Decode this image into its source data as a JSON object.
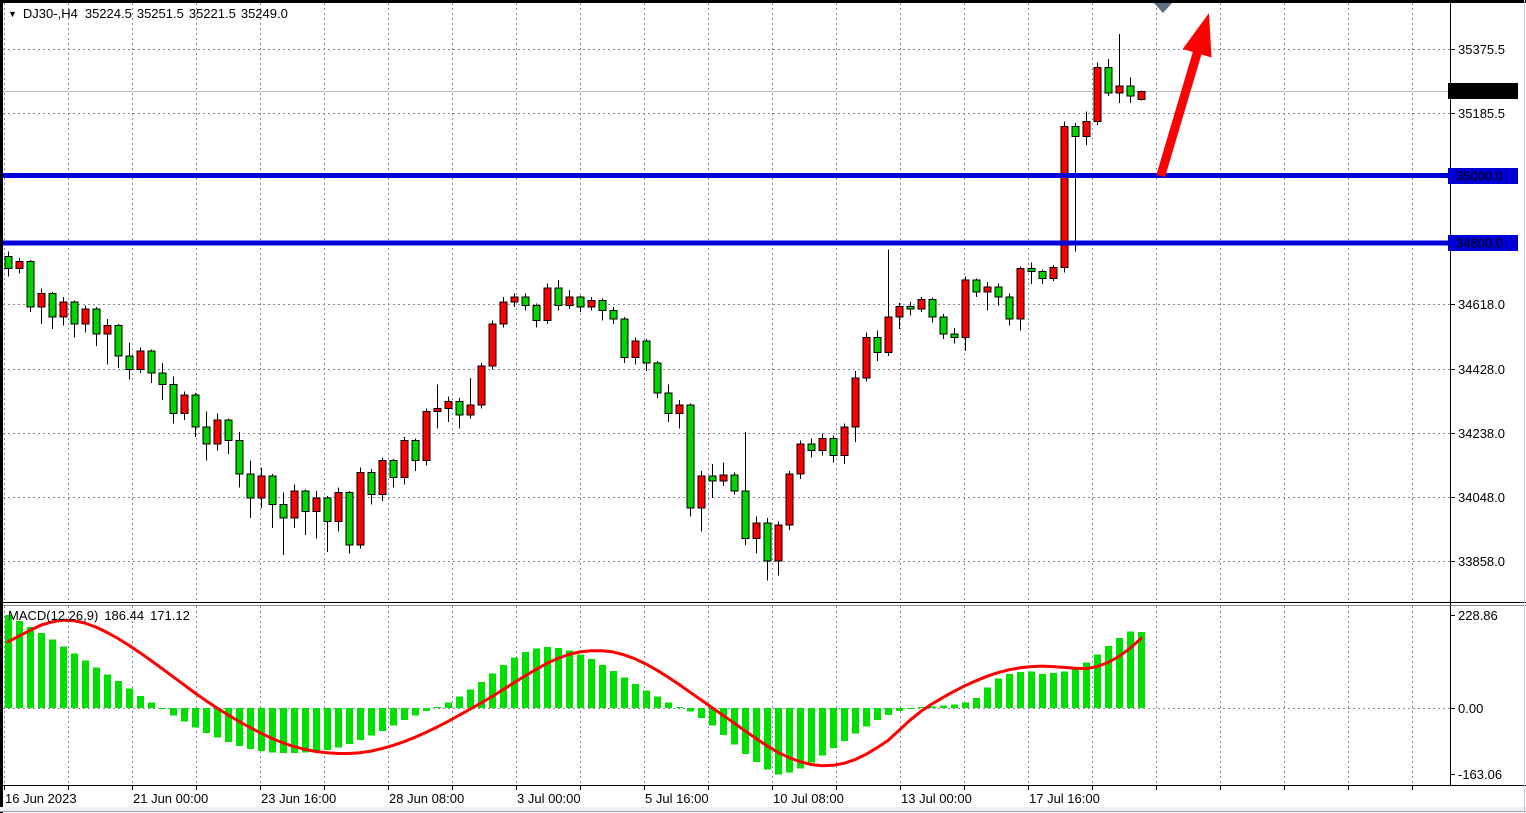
{
  "header": {
    "symbol_period": "DJ30-,H4",
    "open": "35224.5",
    "high": "35251.5",
    "low": "35221.5",
    "close": "35249.0"
  },
  "indicator": {
    "name": "MACD(12,26,9)",
    "macd_value": "186.44",
    "signal_value": "171.12"
  },
  "colors": {
    "bull_candle": "#fb0000",
    "bear_candle": "#00d400",
    "wick": "#000000",
    "histogram": "#00e000",
    "signal_line": "#ff0000",
    "hline": "#0000d6",
    "grid": "#7f8c9b",
    "current_price_line": "#b8bcc0",
    "current_tag_bg": "#000000",
    "hline_tag_bg": "#0000d6",
    "arrow": "#ff0000",
    "top_marker": "#5c7184",
    "border": "#000000"
  },
  "chart_data": {
    "type": "candlestick",
    "symbol": "DJ30-",
    "timeframe": "H4",
    "title": "DJ30- H4 candlestick chart with MACD(12,26,9)",
    "grid": "dashed",
    "price_ticks": [
      35375.5,
      35185.5,
      34618.0,
      34428.0,
      34238.0,
      34048.0,
      33858.0
    ],
    "ylim_price": [
      33736,
      35512
    ],
    "current_price": 35249.0,
    "horizontal_lines": [
      35000.0,
      34800.0
    ],
    "x_axis_labels": [
      "16 Jun 2023",
      "21 Jun 00:00",
      "23 Jun 16:00",
      "28 Jun 08:00",
      "3 Jul 00:00",
      "5 Jul 16:00",
      "10 Jul 08:00",
      "13 Jul 00:00",
      "17 Jul 16:00"
    ],
    "candles_ohlc": [
      [
        34760,
        34775,
        34700,
        34725
      ],
      [
        34725,
        34755,
        34710,
        34745
      ],
      [
        34745,
        34750,
        34595,
        34610
      ],
      [
        34610,
        34665,
        34560,
        34650
      ],
      [
        34650,
        34655,
        34545,
        34580
      ],
      [
        34580,
        34640,
        34555,
        34625
      ],
      [
        34625,
        34630,
        34520,
        34560
      ],
      [
        34560,
        34615,
        34535,
        34605
      ],
      [
        34605,
        34610,
        34495,
        34530
      ],
      [
        34530,
        34575,
        34440,
        34555
      ],
      [
        34555,
        34560,
        34430,
        34465
      ],
      [
        34465,
        34505,
        34395,
        34425
      ],
      [
        34425,
        34490,
        34415,
        34480
      ],
      [
        34480,
        34485,
        34385,
        34415
      ],
      [
        34415,
        34445,
        34335,
        34380
      ],
      [
        34380,
        34405,
        34265,
        34295
      ],
      [
        34295,
        34360,
        34275,
        34350
      ],
      [
        34350,
        34355,
        34225,
        34255
      ],
      [
        34255,
        34300,
        34155,
        34205
      ],
      [
        34205,
        34295,
        34185,
        34275
      ],
      [
        34275,
        34280,
        34175,
        34215
      ],
      [
        34215,
        34240,
        34075,
        34115
      ],
      [
        34115,
        34155,
        33985,
        34045
      ],
      [
        34045,
        34135,
        34015,
        34110
      ],
      [
        34110,
        34115,
        33955,
        34025
      ],
      [
        34025,
        34060,
        33875,
        33985
      ],
      [
        33985,
        34085,
        33955,
        34065
      ],
      [
        34065,
        34070,
        33935,
        34005
      ],
      [
        34005,
        34065,
        33925,
        34045
      ],
      [
        34045,
        34050,
        33885,
        33975
      ],
      [
        33975,
        34075,
        33945,
        34060
      ],
      [
        34060,
        34065,
        33880,
        33905
      ],
      [
        33905,
        34135,
        33895,
        34120
      ],
      [
        34120,
        34130,
        34025,
        34055
      ],
      [
        34055,
        34165,
        34035,
        34155
      ],
      [
        34155,
        34160,
        34075,
        34105
      ],
      [
        34105,
        34225,
        34085,
        34215
      ],
      [
        34215,
        34220,
        34125,
        34155
      ],
      [
        34155,
        34310,
        34140,
        34300
      ],
      [
        34300,
        34380,
        34250,
        34310
      ],
      [
        34310,
        34345,
        34270,
        34330
      ],
      [
        34330,
        34340,
        34250,
        34290
      ],
      [
        34290,
        34400,
        34280,
        34320
      ],
      [
        34320,
        34445,
        34310,
        34435
      ],
      [
        34435,
        34570,
        34425,
        34560
      ],
      [
        34560,
        34640,
        34550,
        34625
      ],
      [
        34625,
        34650,
        34610,
        34640
      ],
      [
        34640,
        34650,
        34600,
        34615
      ],
      [
        34615,
        34620,
        34550,
        34570
      ],
      [
        34570,
        34680,
        34560,
        34667
      ],
      [
        34667,
        34690,
        34600,
        34615
      ],
      [
        34615,
        34660,
        34605,
        34640
      ],
      [
        34640,
        34645,
        34595,
        34610
      ],
      [
        34610,
        34640,
        34600,
        34630
      ],
      [
        34630,
        34635,
        34570,
        34600
      ],
      [
        34600,
        34610,
        34560,
        34575
      ],
      [
        34575,
        34580,
        34445,
        34460
      ],
      [
        34460,
        34520,
        34440,
        34510
      ],
      [
        34510,
        34515,
        34420,
        34445
      ],
      [
        34445,
        34450,
        34340,
        34355
      ],
      [
        34355,
        34380,
        34270,
        34295
      ],
      [
        34295,
        34335,
        34250,
        34320
      ],
      [
        34320,
        34325,
        33990,
        34015
      ],
      [
        34015,
        34125,
        33945,
        34110
      ],
      [
        34110,
        34145,
        34045,
        34095
      ],
      [
        34095,
        34150,
        34080,
        34112
      ],
      [
        34112,
        34120,
        34055,
        34065
      ],
      [
        34065,
        34240,
        33905,
        33925
      ],
      [
        33925,
        33990,
        33880,
        33970
      ],
      [
        33970,
        33985,
        33800,
        33858
      ],
      [
        33858,
        33975,
        33815,
        33965
      ],
      [
        33965,
        34125,
        33950,
        34115
      ],
      [
        34115,
        34215,
        34100,
        34205
      ],
      [
        34205,
        34220,
        34165,
        34185
      ],
      [
        34185,
        34235,
        34170,
        34220
      ],
      [
        34220,
        34230,
        34150,
        34170
      ],
      [
        34170,
        34265,
        34145,
        34255
      ],
      [
        34255,
        34420,
        34210,
        34400
      ],
      [
        34400,
        34535,
        34390,
        34520
      ],
      [
        34520,
        34540,
        34450,
        34475
      ],
      [
        34475,
        34780,
        34465,
        34580
      ],
      [
        34580,
        34622,
        34545,
        34612
      ],
      [
        34612,
        34625,
        34585,
        34605
      ],
      [
        34605,
        34640,
        34595,
        34632
      ],
      [
        34632,
        34638,
        34565,
        34580
      ],
      [
        34580,
        34590,
        34515,
        34530
      ],
      [
        34530,
        34548,
        34502,
        34520
      ],
      [
        34520,
        34700,
        34480,
        34690
      ],
      [
        34690,
        34695,
        34640,
        34655
      ],
      [
        34655,
        34685,
        34600,
        34670
      ],
      [
        34670,
        34680,
        34615,
        34640
      ],
      [
        34640,
        34650,
        34555,
        34575
      ],
      [
        34575,
        34730,
        34540,
        34725
      ],
      [
        34725,
        34742,
        34678,
        34715
      ],
      [
        34715,
        34722,
        34678,
        34695
      ],
      [
        34695,
        34735,
        34688,
        34728
      ],
      [
        34728,
        35160,
        34712,
        35145
      ],
      [
        35145,
        35155,
        34775,
        35115
      ],
      [
        35115,
        35190,
        35090,
        35160
      ],
      [
        35160,
        35335,
        35150,
        35320
      ],
      [
        35320,
        35345,
        35235,
        35245
      ],
      [
        35245,
        35420,
        35215,
        35265
      ],
      [
        35265,
        35290,
        35215,
        35235
      ],
      [
        35224.5,
        35251.5,
        35221.5,
        35249.0
      ]
    ],
    "macd": {
      "params": [
        12,
        26,
        9
      ],
      "current_macd": 186.44,
      "current_signal": 171.12,
      "ticks": [
        228.86,
        0.0,
        -163.06
      ],
      "ylim": [
        -200,
        250
      ],
      "zero_line": true,
      "histogram": [
        228.86,
        214,
        199,
        184,
        168,
        151,
        134,
        117,
        100,
        83,
        66,
        48,
        30,
        13,
        -3,
        -18,
        -33,
        -48,
        -61,
        -73,
        -84,
        -93,
        -101,
        -106,
        -109,
        -111,
        -111,
        -110,
        -107,
        -103,
        -97,
        -89,
        -79,
        -68,
        -56,
        -43,
        -30,
        -18,
        -7,
        3,
        14,
        28,
        45,
        64,
        85,
        106,
        124,
        138,
        147,
        150,
        148,
        142,
        132,
        120,
        106,
        91,
        75,
        59,
        43,
        28,
        14,
        2,
        -9,
        -24,
        -43,
        -66,
        -90,
        -113,
        -133,
        -151,
        -163.06,
        -159,
        -149,
        -134,
        -117,
        -99,
        -81,
        -63,
        -46,
        -30,
        -17,
        -7,
        -1,
        2,
        4,
        6,
        8,
        14,
        24,
        50,
        72,
        84,
        88,
        90,
        84,
        86,
        90,
        97,
        112,
        132,
        153,
        172,
        188,
        186.44
      ],
      "signal": [
        163,
        177,
        191,
        204,
        212,
        216,
        215,
        209,
        199,
        186,
        171,
        154,
        136,
        117,
        97,
        77,
        57,
        37,
        18,
        0,
        -17,
        -33,
        -48,
        -62,
        -75,
        -86,
        -95,
        -102,
        -107,
        -110,
        -112,
        -112,
        -110,
        -106,
        -100,
        -92,
        -83,
        -72,
        -60,
        -47,
        -33,
        -18,
        -3,
        12,
        28,
        45,
        62,
        79,
        95,
        110,
        122,
        132,
        138,
        141,
        141,
        138,
        131,
        121,
        108,
        93,
        76,
        58,
        39,
        20,
        1,
        -18,
        -37,
        -56,
        -75,
        -93,
        -109,
        -122,
        -132,
        -139,
        -142,
        -141,
        -136,
        -127,
        -114,
        -98,
        -80,
        -55,
        -30,
        -8,
        10,
        26,
        41,
        55,
        67,
        78,
        87,
        94,
        99,
        102,
        103,
        102,
        100,
        98,
        97,
        102,
        112,
        127,
        147,
        171.12
      ]
    },
    "annotations": [
      {
        "type": "up-arrow",
        "color": "#ff0000"
      },
      {
        "type": "top-marker-triangle",
        "color": "#5c7184"
      }
    ]
  }
}
